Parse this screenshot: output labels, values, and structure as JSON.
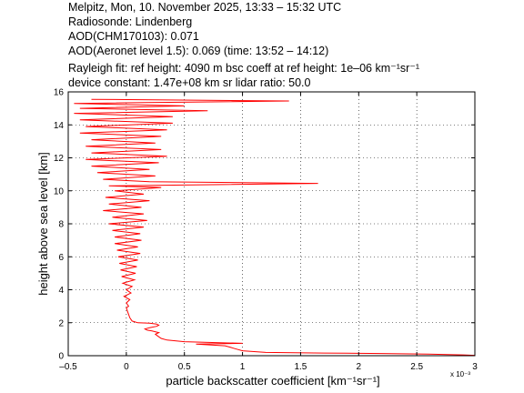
{
  "header": {
    "line1": "Melpitz, Mon, 10. November 2025, 13:33 – 15:32 UTC",
    "line2": "Radiosonde: Lindenberg",
    "line3": "AOD(CHM170103): 0.071",
    "line4": "AOD(Aeronet level 1.5): 0.069   (time: 13:52 – 14:12)",
    "line5": "Rayleigh fit:     ref height: 4090 m     bsc coeff at ref height: 1e–06 km⁻¹sr⁻¹",
    "line6": "device constant: 1.47e+08 km sr     lidar ratio: 50.0"
  },
  "colors": {
    "line": "#ff0000",
    "axes": "#000000",
    "grid": "#000000"
  },
  "chart_data": {
    "type": "line",
    "xlabel": "particle backscatter coefficient [km⁻¹sr⁻¹]",
    "ylabel": "height above sea level [km]",
    "x_scale_label": "x 10⁻³",
    "xlim": [
      -0.5,
      3
    ],
    "ylim": [
      0,
      16
    ],
    "xticks": [
      -0.5,
      0,
      0.5,
      1,
      1.5,
      2,
      2.5,
      3
    ],
    "xtick_labels": [
      "–0.5",
      "0",
      "0.5",
      "1",
      "1.5",
      "2",
      "2.5",
      "3"
    ],
    "yticks": [
      0,
      2,
      4,
      6,
      8,
      10,
      12,
      14,
      16
    ],
    "ytick_labels": [
      "0",
      "2",
      "4",
      "6",
      "8",
      "10",
      "12",
      "14",
      "16"
    ],
    "grid": true,
    "x_units_note": "x values in units of 1e-3 km-1 sr-1",
    "series": [
      {
        "values_xy": [
          [
            3.0,
            0.02
          ],
          [
            2.9,
            0.05
          ],
          [
            2.6,
            0.1
          ],
          [
            2.2,
            0.13
          ],
          [
            1.7,
            0.16
          ],
          [
            1.2,
            0.2
          ],
          [
            1.0,
            0.3
          ],
          [
            0.95,
            0.4
          ],
          [
            0.9,
            0.5
          ],
          [
            0.85,
            0.6
          ],
          [
            0.6,
            0.7
          ],
          [
            1.0,
            0.75
          ],
          [
            0.5,
            0.85
          ],
          [
            0.35,
            0.95
          ],
          [
            0.3,
            1.05
          ],
          [
            0.27,
            1.2
          ],
          [
            0.25,
            1.3
          ],
          [
            0.28,
            1.4
          ],
          [
            0.22,
            1.5
          ],
          [
            0.18,
            1.55
          ],
          [
            0.16,
            1.62
          ],
          [
            0.2,
            1.7
          ],
          [
            0.26,
            1.78
          ],
          [
            0.28,
            1.85
          ],
          [
            0.26,
            1.92
          ],
          [
            0.2,
            1.97
          ],
          [
            0.1,
            2.0
          ],
          [
            0.05,
            2.1
          ],
          [
            0.03,
            2.3
          ],
          [
            0.02,
            2.5
          ],
          [
            0.01,
            2.7
          ],
          [
            0.0,
            2.9
          ],
          [
            0.02,
            3.0
          ],
          [
            0.0,
            3.2
          ],
          [
            0.03,
            3.4
          ],
          [
            -0.02,
            3.6
          ],
          [
            0.04,
            3.8
          ],
          [
            0.0,
            4.0
          ],
          [
            0.05,
            4.2
          ],
          [
            -0.03,
            4.4
          ],
          [
            0.07,
            4.6
          ],
          [
            -0.04,
            4.8
          ],
          [
            0.08,
            5.0
          ],
          [
            -0.05,
            5.2
          ],
          [
            0.09,
            5.4
          ],
          [
            -0.06,
            5.6
          ],
          [
            0.1,
            5.8
          ],
          [
            -0.07,
            6.0
          ],
          [
            0.12,
            6.2
          ],
          [
            -0.08,
            6.4
          ],
          [
            0.1,
            6.6
          ],
          [
            -0.1,
            6.8
          ],
          [
            0.13,
            7.0
          ],
          [
            -0.1,
            7.2
          ],
          [
            0.12,
            7.4
          ],
          [
            -0.12,
            7.6
          ],
          [
            0.15,
            7.8
          ],
          [
            -0.15,
            8.0
          ],
          [
            0.18,
            8.2
          ],
          [
            -0.12,
            8.4
          ],
          [
            0.15,
            8.6
          ],
          [
            -0.2,
            8.8
          ],
          [
            0.13,
            9.0
          ],
          [
            -0.15,
            9.2
          ],
          [
            0.2,
            9.4
          ],
          [
            -0.18,
            9.6
          ],
          [
            0.15,
            9.8
          ],
          [
            -0.1,
            10.0
          ],
          [
            0.3,
            10.2
          ],
          [
            -0.15,
            10.3
          ],
          [
            1.65,
            10.45
          ],
          [
            0.2,
            10.55
          ],
          [
            -0.2,
            10.7
          ],
          [
            0.25,
            10.9
          ],
          [
            -0.25,
            11.1
          ],
          [
            0.2,
            11.3
          ],
          [
            -0.3,
            11.5
          ],
          [
            0.28,
            11.7
          ],
          [
            -0.35,
            11.9
          ],
          [
            0.35,
            12.1
          ],
          [
            -0.3,
            12.3
          ],
          [
            0.3,
            12.5
          ],
          [
            -0.35,
            12.7
          ],
          [
            0.25,
            12.9
          ],
          [
            -0.3,
            13.1
          ],
          [
            0.3,
            13.3
          ],
          [
            -0.4,
            13.5
          ],
          [
            0.35,
            13.7
          ],
          [
            -0.35,
            13.9
          ],
          [
            0.4,
            14.1
          ],
          [
            -0.4,
            14.3
          ],
          [
            0.4,
            14.5
          ],
          [
            -0.45,
            14.7
          ],
          [
            0.7,
            14.85
          ],
          [
            -0.4,
            15.0
          ],
          [
            0.5,
            15.15
          ],
          [
            -0.45,
            15.3
          ],
          [
            1.4,
            15.45
          ],
          [
            -0.3,
            15.55
          ]
        ]
      }
    ]
  }
}
